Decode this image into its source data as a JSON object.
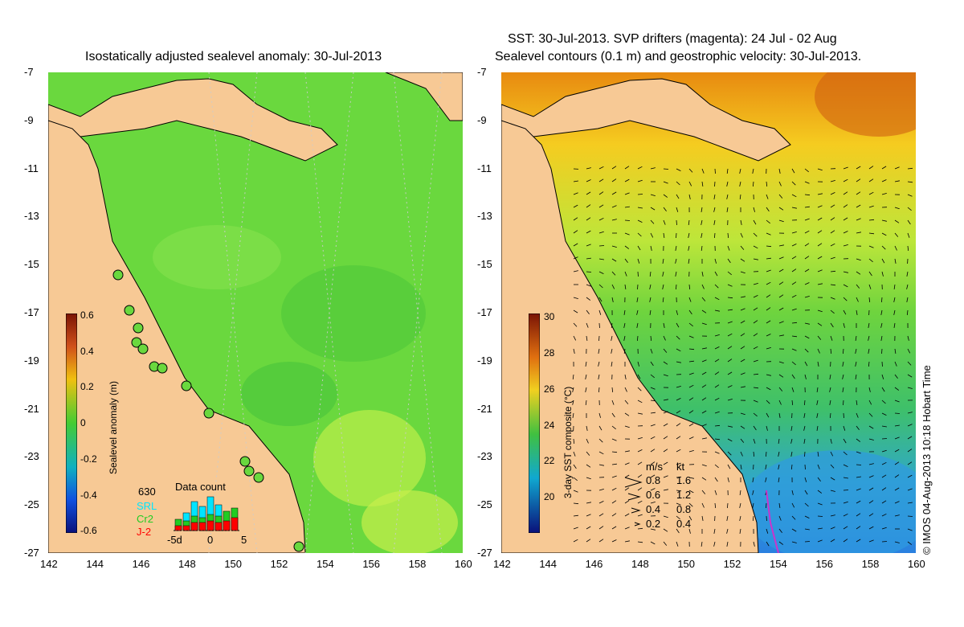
{
  "left_map": {
    "title": "Isostatically adjusted sealevel anomaly: 30-Jul-2013",
    "colorbar": {
      "label": "Sealevel anomaly (m)",
      "ticks": [
        "0.6",
        "0.4",
        "0.2",
        "0",
        "-0.2",
        "-0.4",
        "-0.6"
      ]
    },
    "data_count": {
      "title": "Data count",
      "total": "630",
      "legend": [
        {
          "name": "SRL",
          "color": "#00e5ff"
        },
        {
          "name": "Cr2",
          "color": "#22cc22"
        },
        {
          "name": "J-2",
          "color": "#ff0000"
        }
      ],
      "x_ticks": [
        "-5d",
        "0",
        "5"
      ]
    }
  },
  "right_map": {
    "title_line1": "SST: 30-Jul-2013. SVP drifters (magenta): 24 Jul - 02 Aug",
    "title_line2": "Sealevel contours (0.1 m) and geostrophic velocity: 30-Jul-2013.",
    "colorbar": {
      "label": "3-day SST composite (°C)",
      "ticks": [
        "30",
        "28",
        "26",
        "24",
        "22",
        "20"
      ]
    },
    "speed_legend": {
      "header_ms": "m/s",
      "header_kt": "kt",
      "rows": [
        {
          "ms": "0.8",
          "kt": "1.6"
        },
        {
          "ms": "0.6",
          "kt": "1.2"
        },
        {
          "ms": "0.4",
          "kt": "0.8"
        },
        {
          "ms": "0.2",
          "kt": "0.4"
        }
      ]
    }
  },
  "axes": {
    "lat_ticks": [
      "-7",
      "-9",
      "-11",
      "-13",
      "-15",
      "-17",
      "-19",
      "-21",
      "-23",
      "-25",
      "-27"
    ],
    "lon_ticks": [
      "142",
      "144",
      "146",
      "148",
      "150",
      "152",
      "154",
      "156",
      "158",
      "160"
    ]
  },
  "credit": "© IMOS 04-Aug-2013 10:18 Hobart Time",
  "colors": {
    "land": "#f7c995",
    "ocean_green": "#5ed63a",
    "warm_orange": "#ee9a18",
    "cool_blue": "#2a8fe0"
  }
}
